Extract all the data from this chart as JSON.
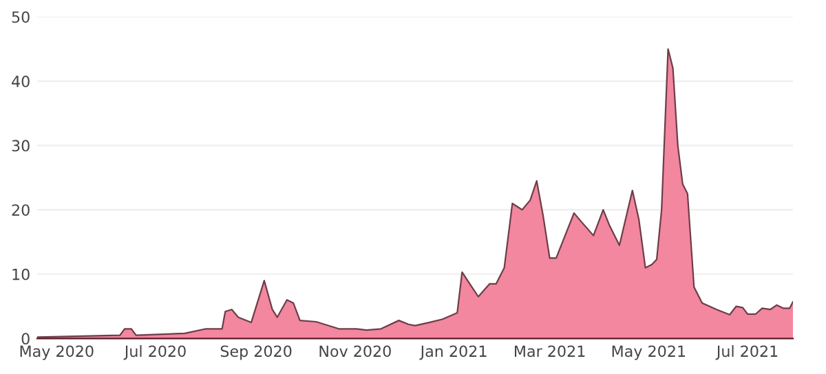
{
  "chart_data": {
    "type": "area",
    "xlim": [
      "2020-04-19",
      "2021-07-29"
    ],
    "ylim": [
      0,
      50
    ],
    "yticks": [
      0,
      10,
      20,
      30,
      40,
      50
    ],
    "xticks": [
      {
        "value": "2020-05-01",
        "label": "May 2020"
      },
      {
        "value": "2020-07-01",
        "label": "Jul 2020"
      },
      {
        "value": "2020-09-01",
        "label": "Sep 2020"
      },
      {
        "value": "2020-11-01",
        "label": "Nov 2020"
      },
      {
        "value": "2021-01-01",
        "label": "Jan 2021"
      },
      {
        "value": "2021-03-01",
        "label": "Mar 2021"
      },
      {
        "value": "2021-05-01",
        "label": "May 2021"
      },
      {
        "value": "2021-07-01",
        "label": "Jul 2021"
      }
    ],
    "grid": "y",
    "legend": false,
    "series": [
      {
        "color": "#f2879f",
        "x": [
          "2020-04-19",
          "2020-06-09",
          "2020-06-12",
          "2020-06-16",
          "2020-06-19",
          "2020-07-19",
          "2020-08-01",
          "2020-08-11",
          "2020-08-13",
          "2020-08-17",
          "2020-08-21",
          "2020-08-29",
          "2020-09-06",
          "2020-09-11",
          "2020-09-14",
          "2020-09-20",
          "2020-09-24",
          "2020-09-28",
          "2020-10-08",
          "2020-10-22",
          "2020-11-02",
          "2020-11-08",
          "2020-11-17",
          "2020-11-28",
          "2020-12-04",
          "2020-12-08",
          "2020-12-17",
          "2020-12-25",
          "2021-01-03",
          "2021-01-06",
          "2021-01-12",
          "2021-01-16",
          "2021-01-23",
          "2021-01-27",
          "2021-02-01",
          "2021-02-06",
          "2021-02-09",
          "2021-02-12",
          "2021-02-17",
          "2021-02-21",
          "2021-02-25",
          "2021-03-01",
          "2021-03-05",
          "2021-03-16",
          "2021-03-20",
          "2021-03-28",
          "2021-04-03",
          "2021-04-07",
          "2021-04-13",
          "2021-04-21",
          "2021-04-25",
          "2021-04-29",
          "2021-05-03",
          "2021-05-06",
          "2021-05-09",
          "2021-05-13",
          "2021-05-16",
          "2021-05-19",
          "2021-05-22",
          "2021-05-25",
          "2021-05-29",
          "2021-06-03",
          "2021-06-12",
          "2021-06-20",
          "2021-06-24",
          "2021-06-28",
          "2021-07-01",
          "2021-07-06",
          "2021-07-10",
          "2021-07-15",
          "2021-07-19",
          "2021-07-23",
          "2021-07-27",
          "2021-07-29"
        ],
        "values": [
          0.2,
          0.5,
          1.5,
          1.5,
          0.5,
          0.8,
          1.5,
          1.5,
          4.2,
          4.5,
          3.3,
          2.5,
          9,
          4.5,
          3.3,
          6,
          5.5,
          2.8,
          2.6,
          1.5,
          1.5,
          1.3,
          1.5,
          2.8,
          2.2,
          2,
          2.5,
          3,
          4,
          10.3,
          8,
          6.5,
          8.5,
          8.5,
          11,
          21,
          20.5,
          20,
          21.5,
          24.5,
          19,
          12.5,
          12.5,
          19.5,
          18.3,
          16,
          20,
          17.5,
          14.5,
          23,
          18.5,
          11,
          11.5,
          12.3,
          20,
          45,
          42,
          30,
          24,
          22.5,
          8,
          5.5,
          4.5,
          3.7,
          5,
          4.8,
          3.8,
          3.8,
          4.7,
          4.5,
          5.2,
          4.7,
          4.7,
          5.7
        ]
      }
    ]
  }
}
